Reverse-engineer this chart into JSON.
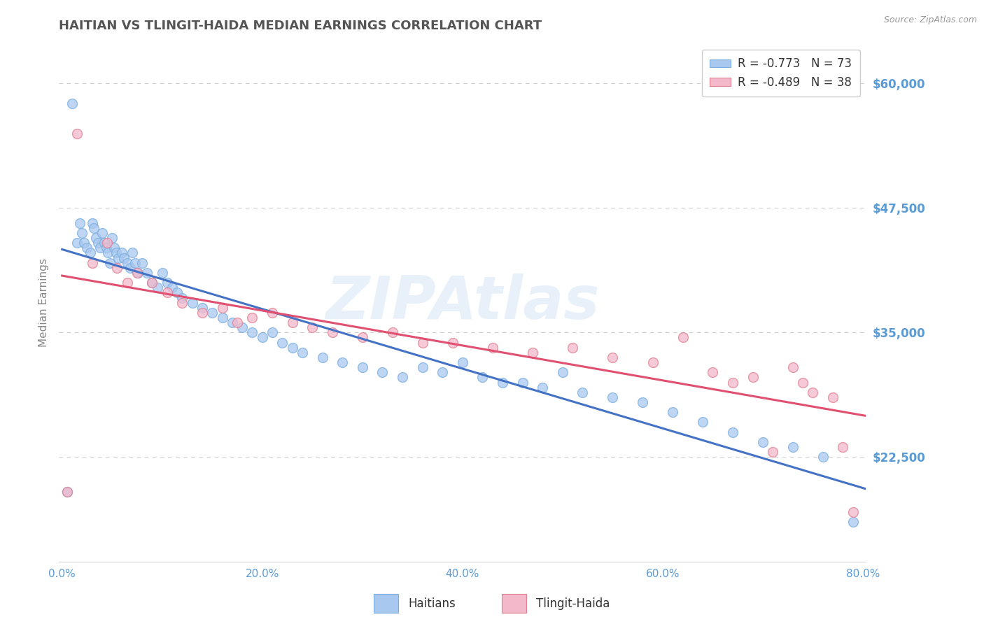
{
  "title": "HAITIAN VS TLINGIT-HAIDA MEDIAN EARNINGS CORRELATION CHART",
  "source_text": "Source: ZipAtlas.com",
  "ylabel": "Median Earnings",
  "xlim": [
    -0.003,
    0.803
  ],
  "ylim": [
    12000,
    64000
  ],
  "yticks": [
    22500,
    35000,
    47500,
    60000
  ],
  "ytick_labels": [
    "$22,500",
    "$35,000",
    "$47,500",
    "$60,000"
  ],
  "xticks": [
    0.0,
    0.2,
    0.4,
    0.6,
    0.8
  ],
  "xtick_labels": [
    "0.0%",
    "20.0%",
    "40.0%",
    "60.0%",
    "80.0%"
  ],
  "haitian_marker_color": "#a8c8f0",
  "haitian_edge_color": "#7baede",
  "haitian_line_color": "#4472c4",
  "tlingit_marker_color": "#f4b8cb",
  "tlingit_edge_color": "#e08090",
  "tlingit_line_color": "#e05070",
  "legend_label1": "R = -0.773   N = 73",
  "legend_label2": "R = -0.489   N = 38",
  "bottom_label1": "Haitians",
  "bottom_label2": "Tlingit-Haida",
  "watermark": "ZIPAtlas",
  "background_color": "#ffffff",
  "grid_color": "#cccccc",
  "title_color": "#555555",
  "tick_label_color": "#5b9bd5",
  "ylabel_color": "#888888",
  "haitian_x": [
    0.005,
    0.01,
    0.015,
    0.018,
    0.02,
    0.022,
    0.025,
    0.028,
    0.03,
    0.032,
    0.034,
    0.036,
    0.038,
    0.04,
    0.042,
    0.044,
    0.046,
    0.048,
    0.05,
    0.052,
    0.054,
    0.056,
    0.06,
    0.062,
    0.065,
    0.068,
    0.07,
    0.073,
    0.076,
    0.08,
    0.085,
    0.09,
    0.095,
    0.1,
    0.105,
    0.11,
    0.115,
    0.12,
    0.13,
    0.14,
    0.15,
    0.16,
    0.17,
    0.18,
    0.19,
    0.2,
    0.21,
    0.22,
    0.23,
    0.24,
    0.26,
    0.28,
    0.3,
    0.32,
    0.34,
    0.36,
    0.38,
    0.4,
    0.42,
    0.44,
    0.46,
    0.48,
    0.5,
    0.52,
    0.55,
    0.58,
    0.61,
    0.64,
    0.67,
    0.7,
    0.73,
    0.76,
    0.79
  ],
  "haitian_y": [
    19000,
    58000,
    44000,
    46000,
    45000,
    44000,
    43500,
    43000,
    46000,
    45500,
    44500,
    44000,
    43500,
    45000,
    44000,
    43500,
    43000,
    42000,
    44500,
    43500,
    43000,
    42500,
    43000,
    42500,
    42000,
    41500,
    43000,
    42000,
    41000,
    42000,
    41000,
    40000,
    39500,
    41000,
    40000,
    39500,
    39000,
    38500,
    38000,
    37500,
    37000,
    36500,
    36000,
    35500,
    35000,
    34500,
    35000,
    34000,
    33500,
    33000,
    32500,
    32000,
    31500,
    31000,
    30500,
    31500,
    31000,
    32000,
    30500,
    30000,
    30000,
    29500,
    31000,
    29000,
    28500,
    28000,
    27000,
    26000,
    25000,
    24000,
    23500,
    22500,
    16000
  ],
  "tlingit_x": [
    0.005,
    0.015,
    0.03,
    0.045,
    0.055,
    0.065,
    0.075,
    0.09,
    0.105,
    0.12,
    0.14,
    0.16,
    0.175,
    0.19,
    0.21,
    0.23,
    0.25,
    0.27,
    0.3,
    0.33,
    0.36,
    0.39,
    0.43,
    0.47,
    0.51,
    0.55,
    0.59,
    0.62,
    0.65,
    0.67,
    0.69,
    0.71,
    0.73,
    0.74,
    0.75,
    0.77,
    0.78,
    0.79
  ],
  "tlingit_y": [
    19000,
    55000,
    42000,
    44000,
    41500,
    40000,
    41000,
    40000,
    39000,
    38000,
    37000,
    37500,
    36000,
    36500,
    37000,
    36000,
    35500,
    35000,
    34500,
    35000,
    34000,
    34000,
    33500,
    33000,
    33500,
    32500,
    32000,
    34500,
    31000,
    30000,
    30500,
    23000,
    31500,
    30000,
    29000,
    28500,
    23500,
    17000
  ]
}
